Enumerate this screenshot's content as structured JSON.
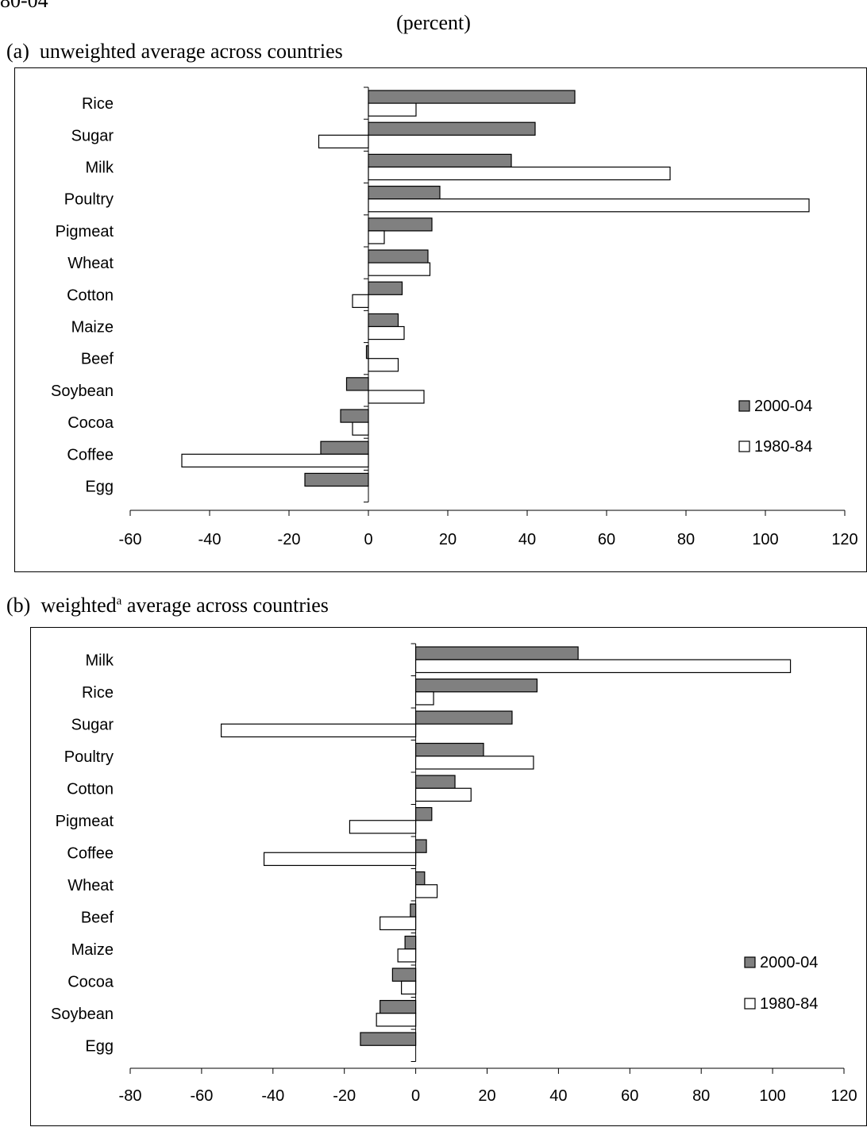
{
  "header": {
    "top_fragment": "80-04",
    "unit": "(percent)"
  },
  "chart_data": [
    {
      "type": "bar",
      "orientation": "horizontal",
      "title_prefix": "(a)",
      "title": "unweighted average across countries",
      "title_superscript": "",
      "title_suffix": "",
      "categories": [
        "Rice",
        "Sugar",
        "Milk",
        "Poultry",
        "Pigmeat",
        "Wheat",
        "Cotton",
        "Maize",
        "Beef",
        "Soybean",
        "Cocoa",
        "Coffee",
        "Egg"
      ],
      "series": [
        {
          "name": "2000-04",
          "color": "#808080",
          "values": [
            52,
            42,
            36,
            18,
            16,
            15,
            8.5,
            7.5,
            -0.5,
            -5.5,
            -7,
            -12,
            -16
          ]
        },
        {
          "name": "1980-84",
          "color": "#ffffff",
          "values": [
            12,
            -12.5,
            76,
            111,
            4,
            15.5,
            -4,
            9,
            7.5,
            14,
            -4,
            -47,
            0
          ]
        }
      ],
      "xlim": [
        -60,
        120
      ],
      "xticks": [
        -60,
        -40,
        -20,
        0,
        20,
        40,
        60,
        80,
        100,
        120
      ],
      "grid": false,
      "legend_position": "right"
    },
    {
      "type": "bar",
      "orientation": "horizontal",
      "title_prefix": "(b)",
      "title": "weighted",
      "title_superscript": "a",
      "title_suffix": "average across countries",
      "categories": [
        "Milk",
        "Rice",
        "Sugar",
        "Poultry",
        "Cotton",
        "Pigmeat",
        "Coffee",
        "Wheat",
        "Beef",
        "Maize",
        "Cocoa",
        "Soybean",
        "Egg"
      ],
      "series": [
        {
          "name": "2000-04",
          "color": "#808080",
          "values": [
            45.5,
            34,
            27,
            19,
            11,
            4.5,
            3,
            2.5,
            -1.5,
            -3,
            -6.5,
            -10,
            -15.5
          ]
        },
        {
          "name": "1980-84",
          "color": "#ffffff",
          "values": [
            105,
            5,
            -54.5,
            33,
            15.5,
            -18.5,
            -42.5,
            6,
            -10,
            -5,
            -4,
            -11,
            0
          ]
        }
      ],
      "xlim": [
        -80,
        120
      ],
      "xticks": [
        -80,
        -60,
        -40,
        -20,
        0,
        20,
        40,
        60,
        80,
        100,
        120
      ],
      "grid": false,
      "legend_position": "right"
    }
  ]
}
